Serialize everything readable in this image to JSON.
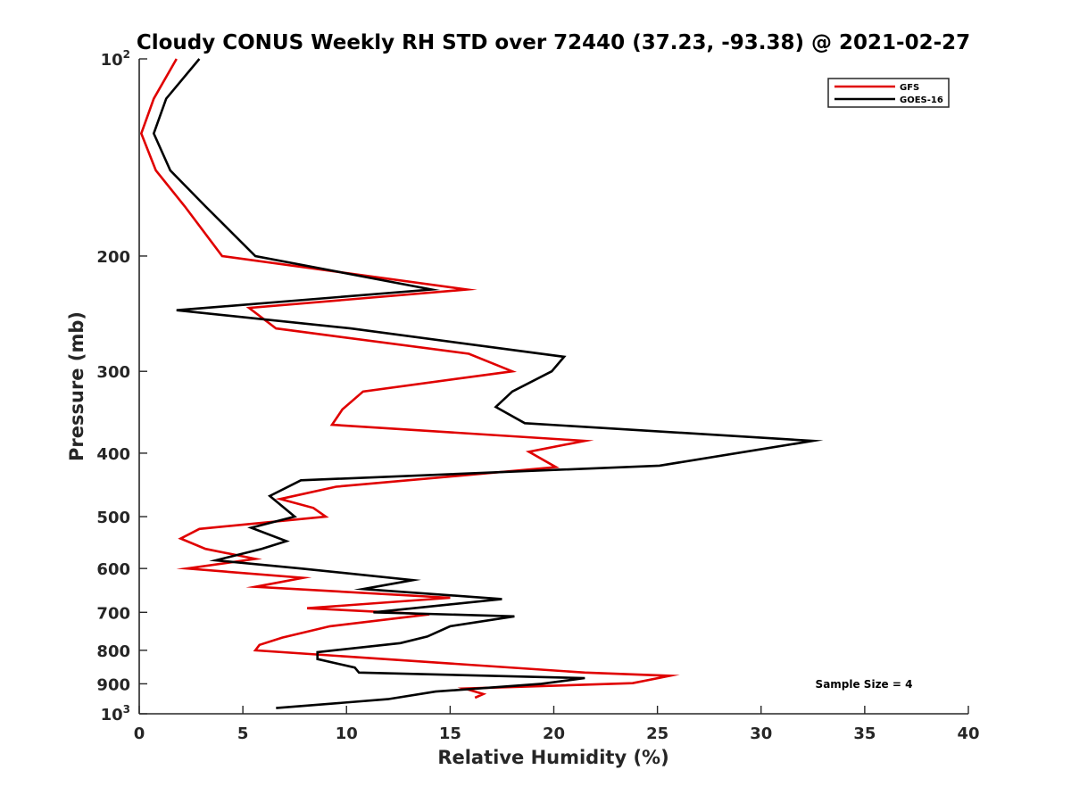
{
  "chart_data": {
    "type": "line",
    "title": "Cloudy CONUS Weekly RH STD over 72440 (37.23, -93.38) @ 2021-02-27",
    "xlabel": "Relative Humidity (%)",
    "ylabel": "Pressure (mb)",
    "xlim": [
      0,
      40
    ],
    "ylim": [
      100,
      1000
    ],
    "y_scale": "log",
    "y_reversed": true,
    "grid": false,
    "legend_position": "top-right",
    "x_ticks": [
      0,
      5,
      10,
      15,
      20,
      25,
      30,
      35,
      40
    ],
    "y_ticks": [
      {
        "value": 100,
        "base": "10",
        "exp": "2"
      },
      {
        "value": 200,
        "label": "200"
      },
      {
        "value": 300,
        "label": "300"
      },
      {
        "value": 400,
        "label": "400"
      },
      {
        "value": 500,
        "label": "500"
      },
      {
        "value": 600,
        "label": "600"
      },
      {
        "value": 700,
        "label": "700"
      },
      {
        "value": 800,
        "label": "800"
      },
      {
        "value": 900,
        "label": "900"
      },
      {
        "value": 1000,
        "base": "10",
        "exp": "3"
      }
    ],
    "series": [
      {
        "name": "GFS",
        "color": "#e00000",
        "points": [
          [
            1.8,
            100
          ],
          [
            0.7,
            115
          ],
          [
            0.1,
            130
          ],
          [
            0.8,
            148
          ],
          [
            2.2,
            168
          ],
          [
            4.0,
            200
          ],
          [
            15.8,
            225
          ],
          [
            5.3,
            240
          ],
          [
            6.6,
            258
          ],
          [
            15.9,
            282
          ],
          [
            18.0,
            300
          ],
          [
            10.8,
            322
          ],
          [
            9.8,
            343
          ],
          [
            9.3,
            362
          ],
          [
            21.5,
            383
          ],
          [
            18.8,
            398
          ],
          [
            20.1,
            420
          ],
          [
            9.5,
            450
          ],
          [
            6.8,
            470
          ],
          [
            8.4,
            485
          ],
          [
            9.0,
            500
          ],
          [
            2.9,
            522
          ],
          [
            2.0,
            540
          ],
          [
            3.2,
            560
          ],
          [
            5.6,
            580
          ],
          [
            2.3,
            600
          ],
          [
            7.9,
            620
          ],
          [
            5.6,
            640
          ],
          [
            15.0,
            665
          ],
          [
            8.1,
            690
          ],
          [
            14.0,
            705
          ],
          [
            9.2,
            735
          ],
          [
            6.9,
            765
          ],
          [
            5.8,
            785
          ],
          [
            5.6,
            800
          ],
          [
            21.5,
            865
          ],
          [
            25.6,
            875
          ],
          [
            23.8,
            898
          ],
          [
            15.7,
            915
          ],
          [
            16.6,
            933
          ],
          [
            16.2,
            945
          ]
        ]
      },
      {
        "name": "GOES-16",
        "color": "#000000",
        "points": [
          [
            2.9,
            100
          ],
          [
            1.3,
            115
          ],
          [
            0.7,
            130
          ],
          [
            1.5,
            148
          ],
          [
            3.2,
            168
          ],
          [
            5.6,
            200
          ],
          [
            14.1,
            225
          ],
          [
            1.8,
            242
          ],
          [
            10.2,
            258
          ],
          [
            20.5,
            285
          ],
          [
            19.9,
            300
          ],
          [
            18.0,
            322
          ],
          [
            17.2,
            340
          ],
          [
            18.6,
            360
          ],
          [
            32.5,
            383
          ],
          [
            25.1,
            418
          ],
          [
            7.8,
            440
          ],
          [
            6.3,
            465
          ],
          [
            7.5,
            500
          ],
          [
            5.4,
            520
          ],
          [
            7.1,
            545
          ],
          [
            5.9,
            560
          ],
          [
            3.7,
            583
          ],
          [
            7.8,
            600
          ],
          [
            13.2,
            625
          ],
          [
            10.8,
            645
          ],
          [
            17.5,
            668
          ],
          [
            11.3,
            700
          ],
          [
            18.1,
            710
          ],
          [
            15.0,
            735
          ],
          [
            13.9,
            762
          ],
          [
            12.6,
            780
          ],
          [
            8.6,
            805
          ],
          [
            8.6,
            825
          ],
          [
            10.4,
            850
          ],
          [
            10.6,
            865
          ],
          [
            21.5,
            882
          ],
          [
            19.4,
            900
          ],
          [
            14.3,
            925
          ],
          [
            12.0,
            950
          ],
          [
            6.6,
            980
          ]
        ]
      }
    ],
    "annotation": "Sample Size = 4"
  }
}
